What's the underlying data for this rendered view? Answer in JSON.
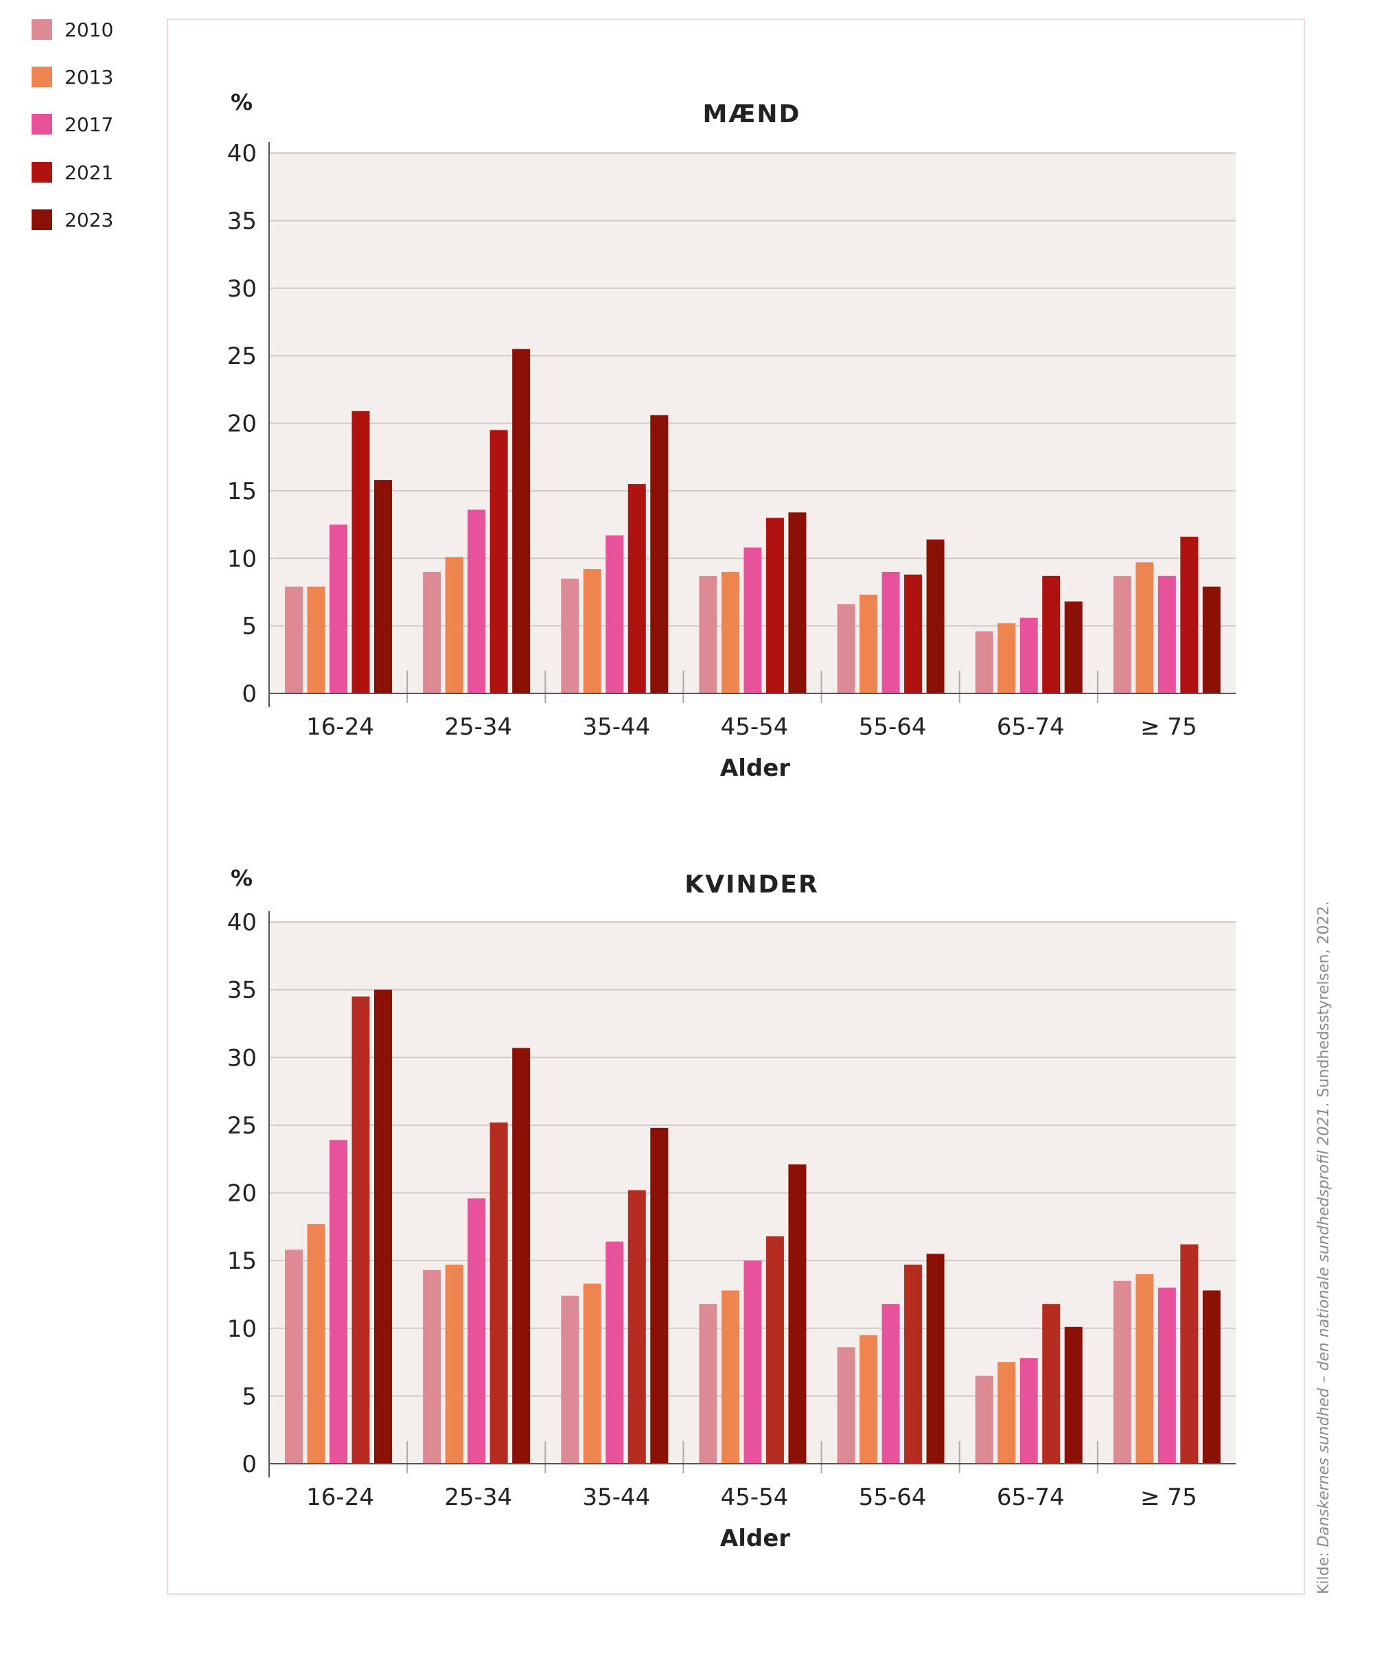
{
  "legend": [
    {
      "label": "2010",
      "color": "#dc8a94"
    },
    {
      "label": "2013",
      "color": "#ee8450"
    },
    {
      "label": "2017",
      "color": "#e8529a"
    },
    {
      "label": "2021",
      "color": "#b0120f"
    },
    {
      "label": "2023",
      "color": "#8b1005"
    }
  ],
  "source": {
    "prefix": "Kilde: ",
    "title": "Danskernes sundhed – den nationale sundhedsprofil 2021",
    "suffix": ". Sundhedsstyrelsen, 2022."
  },
  "chart_data": [
    {
      "type": "bar",
      "title": "MÆND",
      "ylabel": "%",
      "xlabel": "Alder",
      "ylim": [
        0,
        40
      ],
      "yticks": [
        0,
        5,
        10,
        15,
        20,
        25,
        30,
        35,
        40
      ],
      "grid": true,
      "categories": [
        "16-24",
        "25-34",
        "35-44",
        "45-54",
        "55-64",
        "65-74",
        "≥ 75"
      ],
      "series": [
        {
          "name": "2010",
          "color": "#dc8a94",
          "values": [
            7.9,
            9.0,
            8.5,
            8.7,
            6.6,
            4.6,
            8.7
          ]
        },
        {
          "name": "2013",
          "color": "#ee8450",
          "values": [
            7.9,
            10.1,
            9.2,
            9.0,
            7.3,
            5.2,
            9.7
          ]
        },
        {
          "name": "2017",
          "color": "#e8529a",
          "values": [
            12.5,
            13.6,
            11.7,
            10.8,
            9.0,
            5.6,
            8.7
          ]
        },
        {
          "name": "2021",
          "color": "#b0120f",
          "values": [
            20.9,
            19.5,
            15.5,
            13.0,
            8.8,
            8.7,
            11.6
          ]
        },
        {
          "name": "2023",
          "color": "#8b1005",
          "values": [
            15.8,
            25.5,
            20.6,
            13.4,
            11.4,
            6.8,
            7.9
          ]
        }
      ]
    },
    {
      "type": "bar",
      "title": "KVINDER",
      "ylabel": "%",
      "xlabel": "Alder",
      "ylim": [
        0,
        40
      ],
      "yticks": [
        0,
        5,
        10,
        15,
        20,
        25,
        30,
        35,
        40
      ],
      "grid": true,
      "categories": [
        "16-24",
        "25-34",
        "35-44",
        "45-54",
        "55-64",
        "65-74",
        "≥ 75"
      ],
      "series": [
        {
          "name": "2010",
          "color": "#dc8a94",
          "values": [
            15.8,
            14.3,
            12.4,
            11.8,
            8.6,
            6.5,
            13.5
          ]
        },
        {
          "name": "2013",
          "color": "#ee8450",
          "values": [
            17.7,
            14.7,
            13.3,
            12.8,
            9.5,
            7.5,
            14.0
          ]
        },
        {
          "name": "2017",
          "color": "#e8529a",
          "values": [
            23.9,
            19.6,
            16.4,
            15.0,
            11.8,
            7.8,
            13.0
          ]
        },
        {
          "name": "2021",
          "color": "#b72c20",
          "values": [
            34.5,
            25.2,
            20.2,
            16.8,
            14.7,
            11.8,
            16.2
          ]
        },
        {
          "name": "2023",
          "color": "#8b1005",
          "values": [
            35.0,
            30.7,
            24.8,
            22.1,
            15.5,
            10.1,
            12.8
          ]
        }
      ]
    }
  ]
}
